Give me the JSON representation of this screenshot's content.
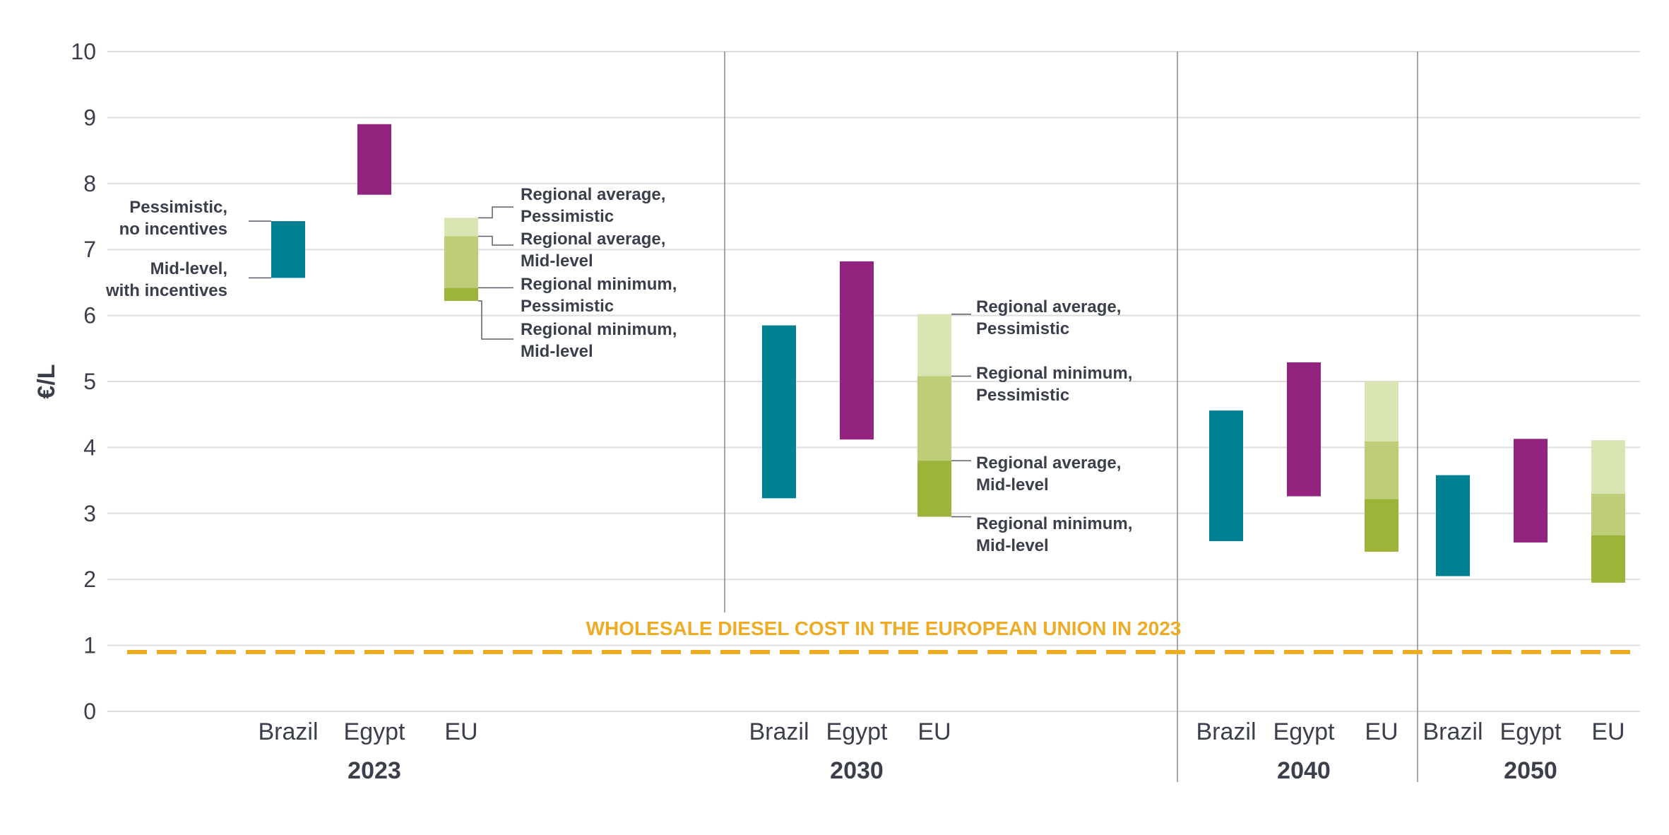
{
  "chart_data": {
    "type": "range-bar",
    "ylabel": "€/L",
    "ylim": [
      0,
      10
    ],
    "yticks": [
      0,
      1,
      2,
      3,
      4,
      5,
      6,
      7,
      8,
      9,
      10
    ],
    "grid": true,
    "colors": {
      "Brazil": "#008193",
      "Egypt": "#92237f",
      "EU_regional_minimum_midlevel": "#9db43a",
      "EU_midlevel_band": "#becd78",
      "EU_pessimistic_band": "#d9e4b3",
      "reference_line": "#eeac26",
      "grid": "#dddddd",
      "divider": "#888888",
      "text": "#3a3f4b"
    },
    "reference_line": {
      "label": "WHOLESALE DIESEL COST IN THE EUROPEAN UNION IN 2023",
      "value": 0.9
    },
    "groups": [
      {
        "year": "2023",
        "bars": [
          {
            "category": "Brazil",
            "low": 6.57,
            "high": 7.43
          },
          {
            "category": "Egypt",
            "low": 7.83,
            "high": 8.9
          },
          {
            "category": "EU",
            "segments": [
              {
                "low": 6.22,
                "high": 6.42,
                "tone": "EU_regional_minimum_midlevel"
              },
              {
                "low": 6.42,
                "high": 7.2,
                "tone": "EU_midlevel_band"
              },
              {
                "low": 7.2,
                "high": 7.48,
                "tone": "EU_pessimistic_band"
              }
            ]
          }
        ]
      },
      {
        "year": "2030",
        "bars": [
          {
            "category": "Brazil",
            "low": 3.23,
            "high": 5.85
          },
          {
            "category": "Egypt",
            "low": 4.12,
            "high": 6.82
          },
          {
            "category": "EU",
            "segments": [
              {
                "low": 2.95,
                "high": 3.8,
                "tone": "EU_regional_minimum_midlevel"
              },
              {
                "low": 3.8,
                "high": 5.08,
                "tone": "EU_midlevel_band"
              },
              {
                "low": 5.08,
                "high": 6.02,
                "tone": "EU_pessimistic_band"
              }
            ]
          }
        ]
      },
      {
        "year": "2040",
        "bars": [
          {
            "category": "Brazil",
            "low": 2.58,
            "high": 4.56
          },
          {
            "category": "Egypt",
            "low": 3.26,
            "high": 5.29
          },
          {
            "category": "EU",
            "segments": [
              {
                "low": 2.42,
                "high": 3.22,
                "tone": "EU_regional_minimum_midlevel"
              },
              {
                "low": 3.22,
                "high": 4.09,
                "tone": "EU_midlevel_band"
              },
              {
                "low": 4.09,
                "high": 5.0,
                "tone": "EU_pessimistic_band"
              }
            ]
          }
        ]
      },
      {
        "year": "2050",
        "bars": [
          {
            "category": "Brazil",
            "low": 2.05,
            "high": 3.58
          },
          {
            "category": "Egypt",
            "low": 2.56,
            "high": 4.13
          },
          {
            "category": "EU",
            "segments": [
              {
                "low": 1.95,
                "high": 2.67,
                "tone": "EU_regional_minimum_midlevel"
              },
              {
                "low": 2.67,
                "high": 3.3,
                "tone": "EU_midlevel_band"
              },
              {
                "low": 3.3,
                "high": 4.11,
                "tone": "EU_pessimistic_band"
              }
            ]
          }
        ]
      }
    ],
    "annotations": {
      "brazil_2023": [
        {
          "text": [
            "Pessimistic,",
            "no incentives"
          ],
          "value": 7.43
        },
        {
          "text": [
            "Mid-level,",
            "with incentives"
          ],
          "value": 6.57
        }
      ],
      "eu_2023": [
        {
          "text": [
            "Regional average,",
            "Pessimistic"
          ],
          "value": 7.48
        },
        {
          "text": [
            "Regional average,",
            "Mid-level"
          ],
          "value": 7.2
        },
        {
          "text": [
            "Regional minimum,",
            "Pessimistic"
          ],
          "value": 6.42
        },
        {
          "text": [
            "Regional minimum,",
            "Mid-level"
          ],
          "value": 6.22
        }
      ],
      "eu_2030": [
        {
          "text": [
            "Regional average,",
            "Pessimistic"
          ],
          "value": 6.02
        },
        {
          "text": [
            "Regional minimum,",
            "Pessimistic"
          ],
          "value": 5.08
        },
        {
          "text": [
            "Regional average,",
            "Mid-level"
          ],
          "value": 3.8
        },
        {
          "text": [
            "Regional minimum,",
            "Mid-level"
          ],
          "value": 2.95
        }
      ]
    }
  }
}
